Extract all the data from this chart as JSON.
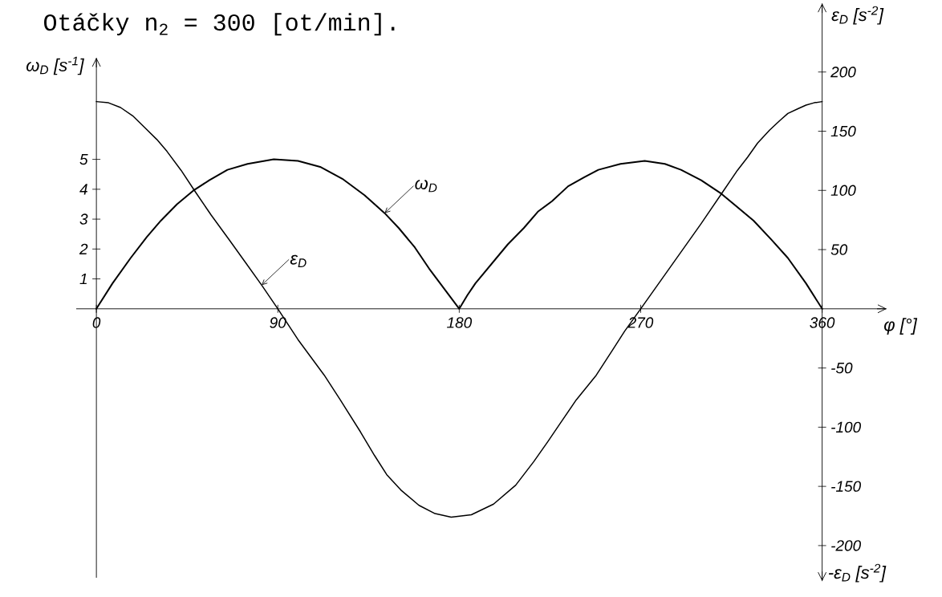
{
  "chart_data": {
    "type": "line",
    "title": "Otáčky n$_{2}$ = 300 [ot/min].",
    "xlabel": "φ [°]",
    "ylabel": "ω$_{D}$ [s$^{-1}$]",
    "y2label": "ε$_{D}$ [s$^{-2}$]",
    "annotations": [
      "-ε$_{D}$ [s$^{-2}$]"
    ],
    "xlim": [
      -10,
      392
    ],
    "xticks": [
      0,
      90,
      180,
      270,
      360
    ],
    "ylim": [
      -9,
      8.4
    ],
    "yticks": [
      1,
      2,
      3,
      4,
      5
    ],
    "y2lim": [
      -230,
      258
    ],
    "y2ticks": [
      -200,
      -150,
      -100,
      -50,
      50,
      100,
      150,
      200
    ],
    "line_style": "solid",
    "marker": "none",
    "series": [
      {
        "name": "ω$_{D}$",
        "color": "#000000",
        "x": [
          0,
          8,
          17,
          25,
          32,
          40,
          48,
          56,
          65,
          75,
          88,
          100,
          111,
          122,
          133,
          143,
          150,
          158,
          165,
          170,
          175,
          180,
          184,
          188,
          196,
          204,
          212,
          219,
          226,
          234,
          242,
          249,
          260,
          272,
          282,
          290,
          300,
          310,
          318,
          326,
          335,
          343,
          352,
          360
        ],
        "values": [
          0,
          0.85,
          1.7,
          2.4,
          2.95,
          3.5,
          3.95,
          4.3,
          4.65,
          4.85,
          5.0,
          4.95,
          4.75,
          4.35,
          3.8,
          3.2,
          2.7,
          2.05,
          1.35,
          0.9,
          0.45,
          0,
          0.45,
          0.85,
          1.5,
          2.15,
          2.7,
          3.25,
          3.6,
          4.1,
          4.4,
          4.65,
          4.85,
          4.95,
          4.85,
          4.65,
          4.3,
          3.85,
          3.4,
          2.95,
          2.3,
          1.7,
          0.85,
          0
        ]
      },
      {
        "name": "ε$_{D}$",
        "color": "#000000",
        "axis": "y2",
        "x": [
          0,
          6,
          12,
          18,
          24,
          30,
          35,
          42,
          49,
          57,
          66,
          74,
          82,
          90,
          100,
          113,
          121,
          131,
          138,
          144,
          151,
          160,
          168,
          176,
          186,
          197,
          208,
          217,
          224,
          230,
          238,
          248,
          256,
          262,
          270,
          280,
          290,
          300,
          310,
          318,
          323,
          328,
          334,
          339,
          343,
          348,
          352,
          356,
          360
        ],
        "values": [
          175,
          174,
          170,
          163,
          153,
          143,
          133,
          117,
          99,
          79,
          58,
          39,
          20,
          0,
          -26,
          -56,
          -77,
          -104,
          -124,
          -140,
          -153,
          -166,
          -173,
          -176,
          -174,
          -165,
          -149,
          -129,
          -112,
          -97,
          -77,
          -56,
          -35,
          -19,
          0,
          24,
          48,
          72,
          97,
          117,
          128,
          140,
          151,
          159,
          165,
          169,
          172,
          174,
          175
        ]
      }
    ]
  }
}
